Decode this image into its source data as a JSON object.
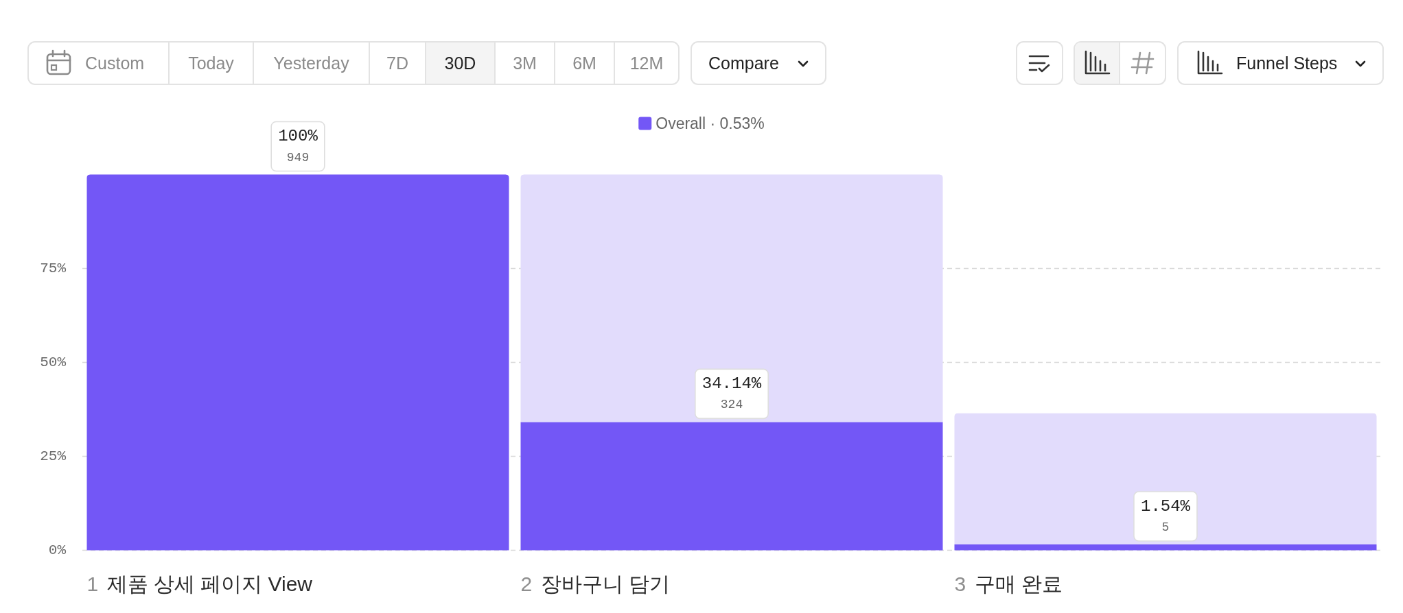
{
  "chart_data": [
    {
      "type": "other",
      "annotations": [
        "Custom",
        "Today",
        "Yesterday",
        "7D",
        "30D",
        "3M",
        "6M",
        "12M",
        "Compare",
        "Funnel Steps"
      ]
    },
    {
      "type": "bar",
      "categories": [
        "1 제품 상세 페이지 View",
        "2 장바구니 담기",
        "3 구매 완료"
      ],
      "stacked": true,
      "series": [
        {
          "name": "Overall · 0.53%",
          "color": "#7357f6",
          "values": [
            100,
            34.14,
            1.54
          ],
          "value_labels": [
            "100%",
            "34.14%",
            "1.54%"
          ]
        },
        {
          "color": "#e2dcfc",
          "values": [
            null,
            65.86,
            34.9
          ]
        }
      ],
      "ylim": [
        0,
        100
      ],
      "yticks": [
        {
          "value": 0,
          "label": "0%"
        },
        {
          "value": 25,
          "label": "25%"
        },
        {
          "value": 50,
          "label": "50%"
        },
        {
          "value": 75,
          "label": "75%"
        }
      ],
      "grid": "y",
      "legend": "top",
      "annotations": [
        "949",
        "324",
        "5"
      ]
    }
  ]
}
